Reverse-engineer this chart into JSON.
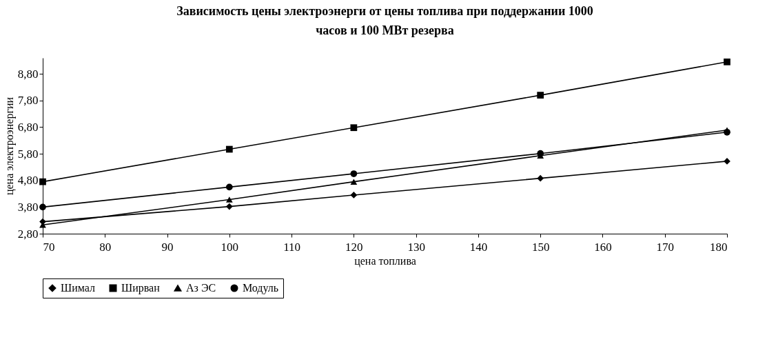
{
  "chart_data": {
    "type": "line",
    "title": "Зависимость цены электроэнерги от цены топлива при поддержании 1000 часов и 100 МВт резерва",
    "xlabel": "цена топлива",
    "ylabel": "цена электроэнергии",
    "x": [
      70,
      100,
      120,
      150,
      180
    ],
    "series": [
      {
        "name": "Шимал",
        "color": "#000000",
        "marker": "diamond",
        "values": [
          3.25,
          3.82,
          4.25,
          4.88,
          5.52
        ]
      },
      {
        "name": "Ширван",
        "color": "#000000",
        "marker": "square",
        "values": [
          4.75,
          5.97,
          6.78,
          8.0,
          9.25
        ]
      },
      {
        "name": "Аз ЭС",
        "color": "#000000",
        "marker": "triangle",
        "values": [
          3.13,
          4.08,
          4.75,
          5.73,
          6.69
        ]
      },
      {
        "name": "Модуль",
        "color": "#000000",
        "marker": "circle",
        "values": [
          3.8,
          4.55,
          5.05,
          5.81,
          6.61
        ]
      }
    ],
    "xlim": [
      70,
      180
    ],
    "xticks": [
      70,
      80,
      90,
      100,
      110,
      120,
      130,
      140,
      150,
      160,
      170,
      180
    ],
    "ylim": [
      2.8,
      9.4
    ],
    "yticks": [
      {
        "value": 2.8,
        "label": "2,80"
      },
      {
        "value": 3.8,
        "label": "3,80"
      },
      {
        "value": 4.8,
        "label": "4,80"
      },
      {
        "value": 5.8,
        "label": "5,80"
      },
      {
        "value": 6.8,
        "label": "6,80"
      },
      {
        "value": 7.8,
        "label": "7,80"
      },
      {
        "value": 8.8,
        "label": "8,80"
      }
    ],
    "grid": false,
    "legend": "bottom",
    "line_style": "solid"
  }
}
